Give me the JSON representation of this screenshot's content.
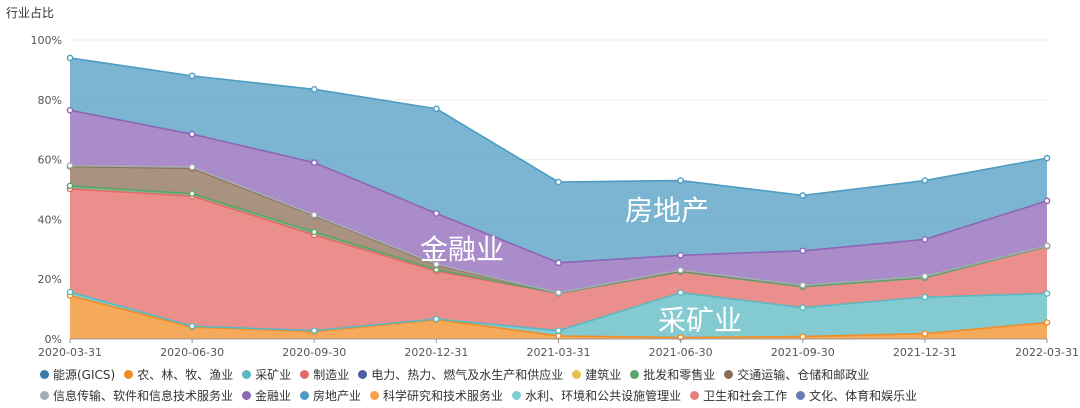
{
  "chart_data": {
    "type": "area",
    "ylabel": "行业占比",
    "ylim": [
      0,
      100
    ],
    "yticks": [
      "0%",
      "20%",
      "40%",
      "60%",
      "80%",
      "100%"
    ],
    "x": [
      "2020-03-31",
      "2020-06-30",
      "2020-09-30",
      "2020-12-31",
      "2021-03-31",
      "2021-06-30",
      "2021-09-30",
      "2021-12-31",
      "2022-03-31"
    ],
    "stacked": true,
    "grid": true,
    "legend_position": "bottom",
    "series": [
      {
        "name": "能源(GICS)",
        "color": "#3f79a5",
        "values": [
          0,
          0,
          0,
          0,
          0,
          0,
          0,
          0,
          0
        ]
      },
      {
        "name": "农、林、牧、渔业",
        "color": "#f08c24",
        "values": [
          14.5,
          4.0,
          2.5,
          6.5,
          1.0,
          0.5,
          0.8,
          1.8,
          5.5
        ]
      },
      {
        "name": "采矿业",
        "color": "#5bb8c1",
        "values": [
          1.2,
          0.3,
          0.3,
          0.2,
          1.8,
          15.0,
          9.7,
          12.2,
          9.7
        ]
      },
      {
        "name": "制造业",
        "color": "#e46a67",
        "values": [
          34.5,
          43.5,
          32.0,
          16.0,
          12.5,
          7.0,
          7.0,
          6.5,
          15.8
        ]
      },
      {
        "name": "电力、热力、燃气及水生产和供应业",
        "color": "#4d5fa6",
        "values": [
          0,
          0,
          0,
          0,
          0,
          0,
          0,
          0,
          0
        ]
      },
      {
        "name": "建筑业",
        "color": "#e7c24b",
        "values": [
          0,
          0,
          0,
          0,
          0,
          0,
          0,
          0,
          0
        ]
      },
      {
        "name": "批发和零售业",
        "color": "#5aa46a",
        "values": [
          1.0,
          0.8,
          1.0,
          0.5,
          0,
          0,
          0,
          0,
          0
        ]
      },
      {
        "name": "交通运输、仓储和邮政业",
        "color": "#8c6d55",
        "values": [
          6.5,
          8.5,
          5.5,
          1.5,
          0.2,
          0.3,
          0.5,
          0.5,
          0.2
        ]
      },
      {
        "name": "信息传输、软件和信息技术服务业",
        "color": "#a4adb4",
        "values": [
          0.3,
          0.4,
          0.2,
          0.3,
          0,
          0.2,
          0,
          0,
          0
        ]
      },
      {
        "name": "金融业",
        "color": "#8d66b8",
        "values": [
          18.5,
          11.0,
          17.5,
          17.0,
          10.0,
          5.0,
          11.5,
          12.3,
          15.0
        ]
      },
      {
        "name": "房地产业",
        "color": "#4f9cc2",
        "values": [
          17.5,
          19.5,
          24.5,
          35.0,
          27.0,
          25.0,
          18.5,
          19.7,
          14.3
        ]
      },
      {
        "name": "科学研究和技术服务业",
        "color": "#f4a24a",
        "values": [
          0,
          0,
          0,
          0,
          0,
          0,
          0,
          0,
          0
        ]
      },
      {
        "name": "水利、环境和公共设施管理业",
        "color": "#7ccfd0",
        "values": [
          0,
          0,
          0,
          0,
          0,
          0,
          0,
          0,
          0
        ]
      },
      {
        "name": "卫生和社会工作",
        "color": "#e87f7f",
        "values": [
          0,
          0,
          0,
          0,
          0,
          0,
          0,
          0,
          0
        ]
      },
      {
        "name": "文化、体育和娱乐业",
        "color": "#6a7bb3",
        "values": [
          0,
          0,
          0,
          0,
          0,
          0,
          0,
          0,
          0
        ]
      }
    ],
    "annotations": [
      "金融业",
      "房地产",
      "采矿业"
    ]
  },
  "legend_rows": [
    [
      0,
      1,
      2,
      3,
      4,
      5,
      6,
      7
    ],
    [
      8,
      9,
      10,
      11,
      12,
      13,
      14
    ]
  ]
}
